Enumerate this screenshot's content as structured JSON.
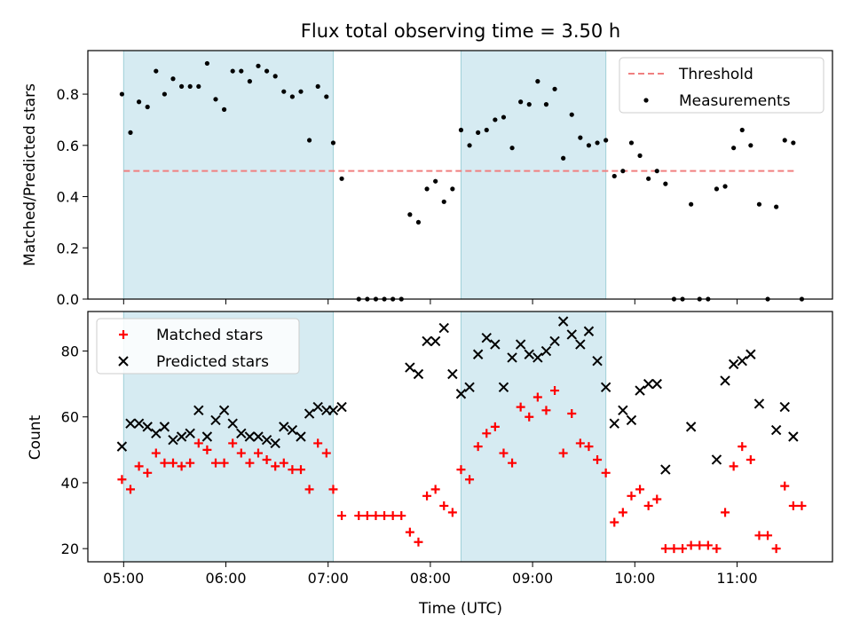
{
  "chart_data": [
    {
      "type": "scatter",
      "title": "Flux total observing time = 3.50 h",
      "xlabel": "",
      "ylabel": "Matched/Predicted stars",
      "xlim": [
        "04:39",
        "11:56"
      ],
      "ylim": [
        0,
        0.97
      ],
      "xticks": [
        "05:00",
        "06:00",
        "07:00",
        "08:00",
        "09:00",
        "10:00",
        "11:00"
      ],
      "yticks": [
        "0.0",
        "0.2",
        "0.4",
        "0.6",
        "0.8"
      ],
      "shaded_intervals": [
        [
          "05:00",
          "07:03"
        ],
        [
          "08:18",
          "09:43"
        ]
      ],
      "legend_position": "upper right",
      "threshold": {
        "name": "Threshold",
        "value": 0.5,
        "x_range": [
          "05:00",
          "11:35"
        ],
        "color": "#f08080",
        "style": "dashed"
      },
      "series": [
        {
          "name": "Measurements",
          "color": "#000000",
          "marker": "dot",
          "points": [
            [
              "04:59",
              0.8
            ],
            [
              "05:04",
              0.65
            ],
            [
              "05:09",
              0.77
            ],
            [
              "05:14",
              0.75
            ],
            [
              "05:19",
              0.89
            ],
            [
              "05:24",
              0.8
            ],
            [
              "05:29",
              0.86
            ],
            [
              "05:34",
              0.83
            ],
            [
              "05:39",
              0.83
            ],
            [
              "05:44",
              0.83
            ],
            [
              "05:49",
              0.92
            ],
            [
              "05:54",
              0.78
            ],
            [
              "05:59",
              0.74
            ],
            [
              "06:04",
              0.89
            ],
            [
              "06:09",
              0.89
            ],
            [
              "06:14",
              0.85
            ],
            [
              "06:19",
              0.91
            ],
            [
              "06:24",
              0.89
            ],
            [
              "06:29",
              0.87
            ],
            [
              "06:34",
              0.81
            ],
            [
              "06:39",
              0.79
            ],
            [
              "06:44",
              0.81
            ],
            [
              "06:49",
              0.62
            ],
            [
              "06:54",
              0.83
            ],
            [
              "06:59",
              0.79
            ],
            [
              "07:03",
              0.61
            ],
            [
              "07:08",
              0.47
            ],
            [
              "07:18",
              0.0
            ],
            [
              "07:23",
              0.0
            ],
            [
              "07:28",
              0.0
            ],
            [
              "07:33",
              0.0
            ],
            [
              "07:38",
              0.0
            ],
            [
              "07:43",
              0.0
            ],
            [
              "07:48",
              0.33
            ],
            [
              "07:53",
              0.3
            ],
            [
              "07:58",
              0.43
            ],
            [
              "08:03",
              0.46
            ],
            [
              "08:08",
              0.38
            ],
            [
              "08:13",
              0.43
            ],
            [
              "08:18",
              0.66
            ],
            [
              "08:23",
              0.6
            ],
            [
              "08:28",
              0.65
            ],
            [
              "08:33",
              0.66
            ],
            [
              "08:38",
              0.7
            ],
            [
              "08:43",
              0.71
            ],
            [
              "08:48",
              0.59
            ],
            [
              "08:53",
              0.77
            ],
            [
              "08:58",
              0.76
            ],
            [
              "09:03",
              0.85
            ],
            [
              "09:08",
              0.76
            ],
            [
              "09:13",
              0.82
            ],
            [
              "09:18",
              0.55
            ],
            [
              "09:23",
              0.72
            ],
            [
              "09:28",
              0.63
            ],
            [
              "09:33",
              0.6
            ],
            [
              "09:38",
              0.61
            ],
            [
              "09:43",
              0.62
            ],
            [
              "09:48",
              0.48
            ],
            [
              "09:53",
              0.5
            ],
            [
              "09:58",
              0.61
            ],
            [
              "10:03",
              0.56
            ],
            [
              "10:08",
              0.47
            ],
            [
              "10:13",
              0.5
            ],
            [
              "10:18",
              0.45
            ],
            [
              "10:23",
              0.0
            ],
            [
              "10:28",
              0.0
            ],
            [
              "10:33",
              0.37
            ],
            [
              "10:38",
              0.0
            ],
            [
              "10:43",
              0.0
            ],
            [
              "10:48",
              0.43
            ],
            [
              "10:53",
              0.44
            ],
            [
              "10:58",
              0.59
            ],
            [
              "11:03",
              0.66
            ],
            [
              "11:08",
              0.6
            ],
            [
              "11:13",
              0.37
            ],
            [
              "11:18",
              0.0
            ],
            [
              "11:23",
              0.36
            ],
            [
              "11:28",
              0.62
            ],
            [
              "11:33",
              0.61
            ],
            [
              "11:38",
              0.0
            ]
          ]
        }
      ]
    },
    {
      "type": "scatter",
      "title": "",
      "xlabel": "Time (UTC)",
      "ylabel": "Count",
      "xlim": [
        "04:39",
        "11:56"
      ],
      "ylim": [
        16,
        92
      ],
      "xticks": [
        "05:00",
        "06:00",
        "07:00",
        "08:00",
        "09:00",
        "10:00",
        "11:00"
      ],
      "yticks": [
        "20",
        "40",
        "60",
        "80"
      ],
      "shaded_intervals": [
        [
          "05:00",
          "07:03"
        ],
        [
          "08:18",
          "09:43"
        ]
      ],
      "legend_position": "upper left",
      "series": [
        {
          "name": "Matched stars",
          "color": "#ff0000",
          "marker": "plus",
          "points": [
            [
              "04:59",
              41
            ],
            [
              "05:04",
              38
            ],
            [
              "05:09",
              45
            ],
            [
              "05:14",
              43
            ],
            [
              "05:19",
              49
            ],
            [
              "05:24",
              46
            ],
            [
              "05:29",
              46
            ],
            [
              "05:34",
              45
            ],
            [
              "05:39",
              46
            ],
            [
              "05:44",
              52
            ],
            [
              "05:49",
              50
            ],
            [
              "05:54",
              46
            ],
            [
              "05:59",
              46
            ],
            [
              "06:04",
              52
            ],
            [
              "06:09",
              49
            ],
            [
              "06:14",
              46
            ],
            [
              "06:19",
              49
            ],
            [
              "06:24",
              47
            ],
            [
              "06:29",
              45
            ],
            [
              "06:34",
              46
            ],
            [
              "06:39",
              44
            ],
            [
              "06:44",
              44
            ],
            [
              "06:49",
              38
            ],
            [
              "06:54",
              52
            ],
            [
              "06:59",
              49
            ],
            [
              "07:03",
              38
            ],
            [
              "07:08",
              30
            ],
            [
              "07:18",
              30
            ],
            [
              "07:23",
              30
            ],
            [
              "07:28",
              30
            ],
            [
              "07:33",
              30
            ],
            [
              "07:38",
              30
            ],
            [
              "07:43",
              30
            ],
            [
              "07:48",
              25
            ],
            [
              "07:53",
              22
            ],
            [
              "07:58",
              36
            ],
            [
              "08:03",
              38
            ],
            [
              "08:08",
              33
            ],
            [
              "08:13",
              31
            ],
            [
              "08:18",
              44
            ],
            [
              "08:23",
              41
            ],
            [
              "08:28",
              51
            ],
            [
              "08:33",
              55
            ],
            [
              "08:38",
              57
            ],
            [
              "08:43",
              49
            ],
            [
              "08:48",
              46
            ],
            [
              "08:53",
              63
            ],
            [
              "08:58",
              60
            ],
            [
              "09:03",
              66
            ],
            [
              "09:08",
              62
            ],
            [
              "09:13",
              68
            ],
            [
              "09:18",
              49
            ],
            [
              "09:23",
              61
            ],
            [
              "09:28",
              52
            ],
            [
              "09:33",
              51
            ],
            [
              "09:38",
              47
            ],
            [
              "09:43",
              43
            ],
            [
              "09:48",
              28
            ],
            [
              "09:53",
              31
            ],
            [
              "09:58",
              36
            ],
            [
              "10:03",
              38
            ],
            [
              "10:08",
              33
            ],
            [
              "10:13",
              35
            ],
            [
              "10:18",
              20
            ],
            [
              "10:23",
              20
            ],
            [
              "10:28",
              20
            ],
            [
              "10:33",
              21
            ],
            [
              "10:38",
              21
            ],
            [
              "10:43",
              21
            ],
            [
              "10:48",
              20
            ],
            [
              "10:53",
              31
            ],
            [
              "10:58",
              45
            ],
            [
              "11:03",
              51
            ],
            [
              "11:08",
              47
            ],
            [
              "11:13",
              24
            ],
            [
              "11:18",
              24
            ],
            [
              "11:23",
              20
            ],
            [
              "11:28",
              39
            ],
            [
              "11:33",
              33
            ],
            [
              "11:38",
              33
            ]
          ]
        },
        {
          "name": "Predicted stars",
          "color": "#000000",
          "marker": "x",
          "points": [
            [
              "04:59",
              51
            ],
            [
              "05:04",
              58
            ],
            [
              "05:09",
              58
            ],
            [
              "05:14",
              57
            ],
            [
              "05:19",
              55
            ],
            [
              "05:24",
              57
            ],
            [
              "05:29",
              53
            ],
            [
              "05:34",
              54
            ],
            [
              "05:39",
              55
            ],
            [
              "05:44",
              62
            ],
            [
              "05:49",
              54
            ],
            [
              "05:54",
              59
            ],
            [
              "05:59",
              62
            ],
            [
              "06:04",
              58
            ],
            [
              "06:09",
              55
            ],
            [
              "06:14",
              54
            ],
            [
              "06:19",
              54
            ],
            [
              "06:24",
              53
            ],
            [
              "06:29",
              52
            ],
            [
              "06:34",
              57
            ],
            [
              "06:39",
              56
            ],
            [
              "06:44",
              54
            ],
            [
              "06:49",
              61
            ],
            [
              "06:54",
              63
            ],
            [
              "06:59",
              62
            ],
            [
              "07:03",
              62
            ],
            [
              "07:08",
              63
            ],
            [
              "07:48",
              75
            ],
            [
              "07:53",
              73
            ],
            [
              "07:58",
              83
            ],
            [
              "08:03",
              83
            ],
            [
              "08:08",
              87
            ],
            [
              "08:13",
              73
            ],
            [
              "08:18",
              67
            ],
            [
              "08:23",
              69
            ],
            [
              "08:28",
              79
            ],
            [
              "08:33",
              84
            ],
            [
              "08:38",
              82
            ],
            [
              "08:43",
              69
            ],
            [
              "08:48",
              78
            ],
            [
              "08:53",
              82
            ],
            [
              "08:58",
              79
            ],
            [
              "09:03",
              78
            ],
            [
              "09:08",
              80
            ],
            [
              "09:13",
              83
            ],
            [
              "09:18",
              89
            ],
            [
              "09:23",
              85
            ],
            [
              "09:28",
              82
            ],
            [
              "09:33",
              86
            ],
            [
              "09:38",
              77
            ],
            [
              "09:43",
              69
            ],
            [
              "09:48",
              58
            ],
            [
              "09:53",
              62
            ],
            [
              "09:58",
              59
            ],
            [
              "10:03",
              68
            ],
            [
              "10:08",
              70
            ],
            [
              "10:13",
              70
            ],
            [
              "10:18",
              44
            ],
            [
              "10:33",
              57
            ],
            [
              "10:48",
              47
            ],
            [
              "10:53",
              71
            ],
            [
              "10:58",
              76
            ],
            [
              "11:03",
              77
            ],
            [
              "11:08",
              79
            ],
            [
              "11:13",
              64
            ],
            [
              "11:23",
              56
            ],
            [
              "11:28",
              63
            ],
            [
              "11:33",
              54
            ]
          ]
        }
      ]
    }
  ]
}
